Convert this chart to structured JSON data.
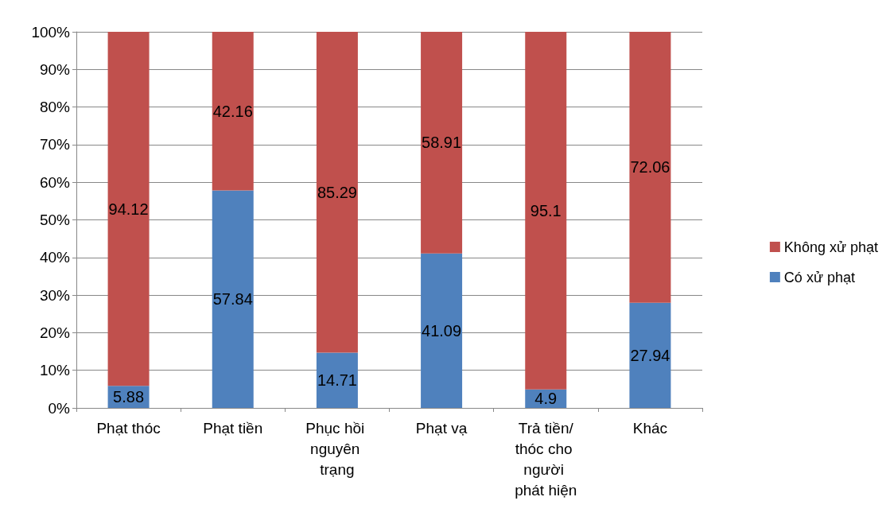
{
  "chart_data": {
    "type": "bar",
    "stacked": true,
    "data_labels": true,
    "grid": "y",
    "legend": "right",
    "categories": [
      "Phạt thóc",
      "Phạt tiền",
      "Phục hồi nguyên trạng",
      "Phạt vạ",
      "Trả tiền/thóc cho người phát hiện",
      "Khác"
    ],
    "series": [
      {
        "name": "Có xử phạt",
        "color": "#4f81bd",
        "values": [
          5.88,
          57.84,
          14.71,
          41.09,
          4.9,
          27.94
        ]
      },
      {
        "name": "Không xử phạt",
        "color": "#c0504d",
        "values": [
          94.12,
          42.16,
          85.29,
          58.91,
          95.1,
          72.06
        ]
      }
    ],
    "ylim": [
      0,
      100
    ],
    "yticks": [
      {
        "value": 0,
        "label": "0%"
      },
      {
        "value": 10,
        "label": "10%"
      },
      {
        "value": 20,
        "label": "20%"
      },
      {
        "value": 30,
        "label": "30%"
      },
      {
        "value": 40,
        "label": "40%"
      },
      {
        "value": 50,
        "label": "50%"
      },
      {
        "value": 60,
        "label": "60%"
      },
      {
        "value": 70,
        "label": "70%"
      },
      {
        "value": 80,
        "label": "80%"
      },
      {
        "value": 90,
        "label": "90%"
      },
      {
        "value": 100,
        "label": "100%"
      }
    ]
  }
}
